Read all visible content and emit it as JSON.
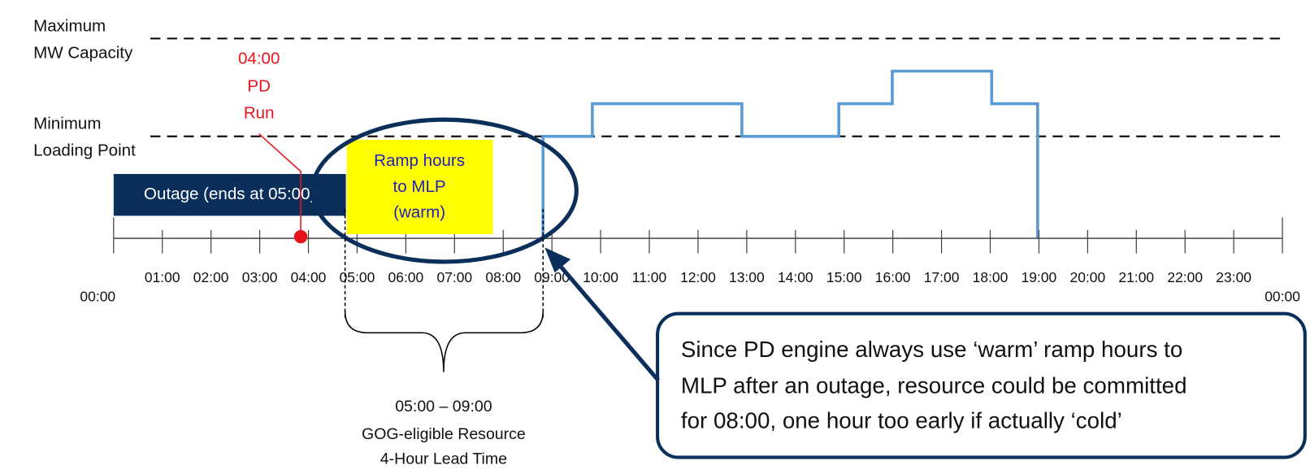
{
  "levels": {
    "maximum": [
      "Maximum",
      "MW Capacity"
    ],
    "minimum": [
      "Minimum",
      "Loading Point"
    ]
  },
  "pd_run": [
    "04:00",
    "PD",
    "Run"
  ],
  "outage": "Outage (ends at 05:00)",
  "ramp": [
    "Ramp hours",
    "to MLP",
    "(warm)"
  ],
  "hours": [
    "00:00",
    "01:00",
    "02:00",
    "03:00",
    "04:00",
    "05:00",
    "06:00",
    "07:00",
    "08:00",
    "09:00",
    "10:00",
    "11:00",
    "12:00",
    "13:00",
    "14:00",
    "15:00",
    "16:00",
    "17:00",
    "18:00",
    "19:00",
    "20:00",
    "21:00",
    "22:00",
    "23:00",
    "00:00"
  ],
  "lead_time": [
    "05:00 – 09:00",
    "GOG-eligible Resource",
    "4-Hour Lead Time"
  ],
  "callout": [
    "Since PD engine always use ‘warm’ ramp hours to",
    "MLP after an outage, resource could be committed",
    "for 08:00, one hour too early if actually ‘cold’"
  ]
}
